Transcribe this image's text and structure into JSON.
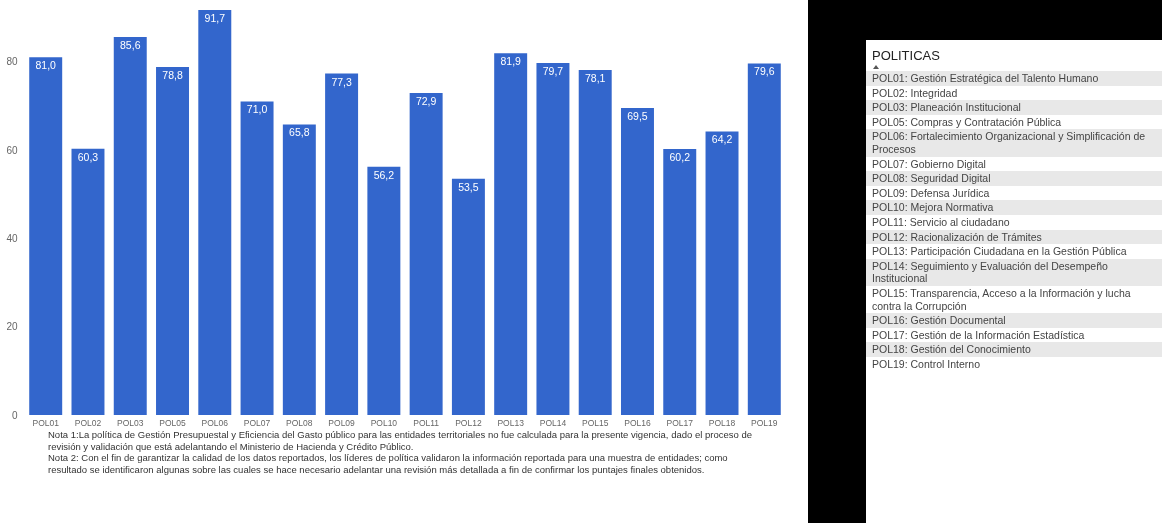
{
  "chart_data": [
    {
      "type": "bar",
      "categories": [
        "POL01",
        "POL02",
        "POL03",
        "POL05",
        "POL06",
        "POL07",
        "POL08",
        "POL09",
        "POL10",
        "POL11",
        "POL12",
        "POL13",
        "POL14",
        "POL15",
        "POL16",
        "POL17",
        "POL18",
        "POL19"
      ],
      "values": [
        81.0,
        60.3,
        85.6,
        78.8,
        91.7,
        71.0,
        65.8,
        77.3,
        56.2,
        72.9,
        53.5,
        81.9,
        79.7,
        78.1,
        69.5,
        60.2,
        64.2,
        79.6
      ],
      "value_labels": [
        "81,0",
        "60,3",
        "85,6",
        "78,8",
        "91,7",
        "71,0",
        "65,8",
        "77,3",
        "56,2",
        "72,9",
        "53,5",
        "81,9",
        "79,7",
        "78,1",
        "69,5",
        "60,2",
        "64,2",
        "79,6"
      ],
      "color": "#3366cc",
      "ylim": [
        0,
        91.7
      ],
      "yticks": [
        0,
        20,
        40,
        60,
        80
      ],
      "grid": false,
      "annotations": [
        "Nota 1:La política de Gestión Presupuestal y Eficiencia del Gasto público para las entidades territoriales no fue calculada para la presente vigencia, dado el proceso de revisión y validación que está adelantando el Ministerio de Hacienda y Crédito Público.",
        "Nota 2: Con el fin de garantizar la calidad de los datos reportados, los líderes de política validaron la información reportada para una muestra de entidades; como resultado se identificaron algunas sobre las cuales se hace necesario adelantar una revisión más detallada a fin de confirmar los puntajes finales obtenidos."
      ]
    },
    {
      "type": "other",
      "title": "POLITICAS",
      "annotations": [
        "POL01: Gestión Estratégica del Talento Humano",
        "POL02: Integridad",
        "POL03: Planeación Institucional",
        "POL05: Compras y Contratación Pública",
        "POL06: Fortalecimiento Organizacional y Simplificación de Procesos",
        "POL07: Gobierno Digital",
        "POL08: Seguridad Digital",
        "POL09: Defensa Jurídica",
        "POL10: Mejora Normativa",
        "POL11: Servicio al ciudadano",
        "POL12: Racionalización de Trámites",
        "POL13: Participación Ciudadana en la Gestión Pública",
        "POL14: Seguimiento y Evaluación del Desempeño Institucional",
        "POL15: Transparencia, Acceso a la Información y lucha contra la Corrupción",
        "POL16: Gestión Documental",
        "POL17: Gestión de la Información Estadística",
        "POL18: Gestión del Conocimiento",
        "POL19: Control Interno"
      ]
    }
  ]
}
